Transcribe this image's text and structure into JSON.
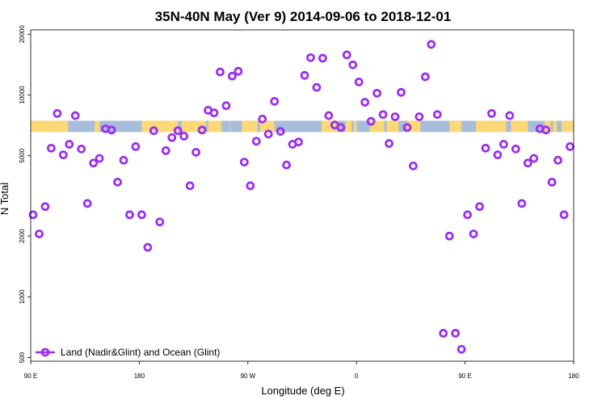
{
  "chart_data": {
    "type": "scatter",
    "title": "35N-40N May (Ver 9)   2014-09-06 to 2018-12-01",
    "xlabel": "Longitude (deg E)",
    "ylabel": "N Total",
    "x_range_deg_east": [
      90,
      540
    ],
    "x_ticks": [
      {
        "value": 90,
        "label": "90 E"
      },
      {
        "value": 180,
        "label": "180"
      },
      {
        "value": 270,
        "label": "90 W"
      },
      {
        "value": 360,
        "label": "0"
      },
      {
        "value": 450,
        "label": "90 E"
      },
      {
        "value": 540,
        "label": "180"
      }
    ],
    "y_scale": "log",
    "ylim": [
      480,
      21000
    ],
    "y_ticks": [
      {
        "value": 500,
        "label": "500"
      },
      {
        "value": 1000,
        "label": "1000"
      },
      {
        "value": 2000,
        "label": "2000"
      },
      {
        "value": 5000,
        "label": "5000"
      },
      {
        "value": 10000,
        "label": "10000"
      },
      {
        "value": 20000,
        "label": "20000"
      }
    ],
    "grid": false,
    "legend_position": "bottom-left",
    "colors": {
      "marker": "#9b30ef",
      "land": "#fcd876",
      "ocean": "#a6bddb"
    },
    "surface_band": {
      "y_range": [
        6550,
        7450
      ],
      "land_segments": [
        [
          90,
          121
        ],
        [
          143,
          147
        ],
        [
          182,
          212
        ],
        [
          215,
          235
        ],
        [
          237,
          248
        ],
        [
          255,
          255.5
        ],
        [
          265,
          278
        ],
        [
          280,
          292
        ],
        [
          331,
          345
        ],
        [
          351,
          356
        ],
        [
          358,
          360
        ],
        [
          371,
          383
        ],
        [
          385,
          395
        ],
        [
          402,
          413
        ],
        [
          437,
          447
        ],
        [
          459,
          484
        ],
        [
          488,
          502
        ],
        [
          516,
          521
        ],
        [
          523,
          526
        ],
        [
          530,
          540
        ]
      ]
    },
    "series": [
      {
        "name": "Land (Nadir&Glint) and Ocean (Glint)",
        "points": [
          [
            92,
            2550
          ],
          [
            97,
            2050
          ],
          [
            102,
            2800
          ],
          [
            107,
            5450
          ],
          [
            112,
            8100
          ],
          [
            117,
            5050
          ],
          [
            122,
            5700
          ],
          [
            127,
            7900
          ],
          [
            132,
            5400
          ],
          [
            137,
            2900
          ],
          [
            142,
            4600
          ],
          [
            147,
            4850
          ],
          [
            152,
            6800
          ],
          [
            157,
            6700
          ],
          [
            162,
            3700
          ],
          [
            167,
            4750
          ],
          [
            172,
            2550
          ],
          [
            177,
            5550
          ],
          [
            182,
            2550
          ],
          [
            187,
            1760
          ],
          [
            192,
            6650
          ],
          [
            197,
            2350
          ],
          [
            202,
            5300
          ],
          [
            207,
            6150
          ],
          [
            212,
            6650
          ],
          [
            217,
            6250
          ],
          [
            222,
            3550
          ],
          [
            227,
            5200
          ],
          [
            232,
            6700
          ],
          [
            237,
            8400
          ],
          [
            242,
            8150
          ],
          [
            247,
            13000
          ],
          [
            252,
            8850
          ],
          [
            257,
            12400
          ],
          [
            262,
            13100
          ],
          [
            267,
            4650
          ],
          [
            272,
            3550
          ],
          [
            277,
            5900
          ],
          [
            282,
            7600
          ],
          [
            287,
            6400
          ],
          [
            292,
            9300
          ],
          [
            297,
            6600
          ],
          [
            302,
            4500
          ],
          [
            307,
            5700
          ],
          [
            312,
            5850
          ],
          [
            317,
            12500
          ],
          [
            322,
            15300
          ],
          [
            327,
            10900
          ],
          [
            332,
            15200
          ],
          [
            337,
            7900
          ],
          [
            342,
            7100
          ],
          [
            347,
            6900
          ],
          [
            352,
            15800
          ],
          [
            357,
            14100
          ],
          [
            362,
            11600
          ],
          [
            367,
            9200
          ],
          [
            372,
            7400
          ],
          [
            377,
            10200
          ],
          [
            382,
            8000
          ],
          [
            387,
            5750
          ],
          [
            392,
            7800
          ],
          [
            397,
            10300
          ],
          [
            402,
            6900
          ],
          [
            407,
            4450
          ],
          [
            412,
            7800
          ],
          [
            417,
            12300
          ],
          [
            422,
            17800
          ],
          [
            427,
            8000
          ],
          [
            432,
            660
          ],
          [
            437,
            2000
          ],
          [
            442,
            660
          ],
          [
            447,
            550
          ],
          [
            452,
            2550
          ],
          [
            457,
            2050
          ],
          [
            462,
            2800
          ],
          [
            467,
            5450
          ],
          [
            472,
            8100
          ],
          [
            477,
            5050
          ],
          [
            482,
            5700
          ],
          [
            487,
            7900
          ],
          [
            492,
            5400
          ],
          [
            497,
            2900
          ],
          [
            502,
            4600
          ],
          [
            507,
            4850
          ],
          [
            512,
            6800
          ],
          [
            517,
            6700
          ],
          [
            522,
            3700
          ],
          [
            527,
            4750
          ],
          [
            532,
            2550
          ],
          [
            537,
            5550
          ]
        ]
      }
    ]
  }
}
